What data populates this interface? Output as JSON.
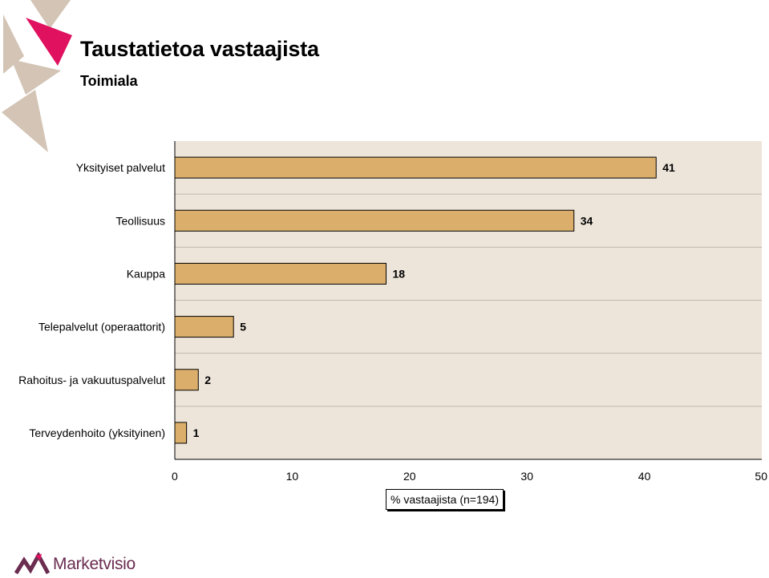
{
  "header": {
    "title": "Taustatietoa vastaajista",
    "subtitle": "Toimiala"
  },
  "colors": {
    "bar_fill": "#dbaf6b",
    "plot_bg": "#ede5da",
    "grid": "#bfb8ae",
    "accent": "#e0115f",
    "deco": "#d3c4b5",
    "logo": "#6a2c4f"
  },
  "chart_data": {
    "type": "bar",
    "orientation": "horizontal",
    "categories": [
      "Yksityiset palvelut",
      "Teollisuus",
      "Kauppa",
      "Telepalvelut (operaattorit)",
      "Rahoitus- ja vakuutuspalvelut",
      "Terveydenhoito (yksityinen)"
    ],
    "values": [
      41,
      34,
      18,
      5,
      2,
      1
    ],
    "xlim": [
      0,
      50
    ],
    "xticks": [
      0,
      10,
      20,
      30,
      40,
      50
    ],
    "xlabel": "% vastaajista (n=194)",
    "grid": true
  },
  "logo": {
    "text": "Marketvisio"
  }
}
